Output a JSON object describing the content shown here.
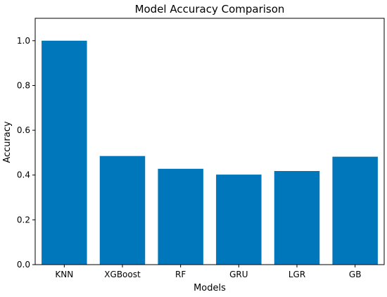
{
  "chart_data": {
    "type": "bar",
    "title": "Model Accuracy Comparison",
    "xlabel": "Models",
    "ylabel": "Accuracy",
    "categories": [
      "KNN",
      "XGBoost",
      "RF",
      "GRU",
      "LGR",
      "GB"
    ],
    "values": [
      1.0,
      0.485,
      0.428,
      0.402,
      0.418,
      0.482
    ],
    "ylim": [
      0,
      1.1
    ],
    "yticks": [
      "0.0",
      "0.2",
      "0.4",
      "0.6",
      "0.8",
      "1.0"
    ],
    "bar_color": "#0077bb",
    "grid": false,
    "legend": "none"
  }
}
